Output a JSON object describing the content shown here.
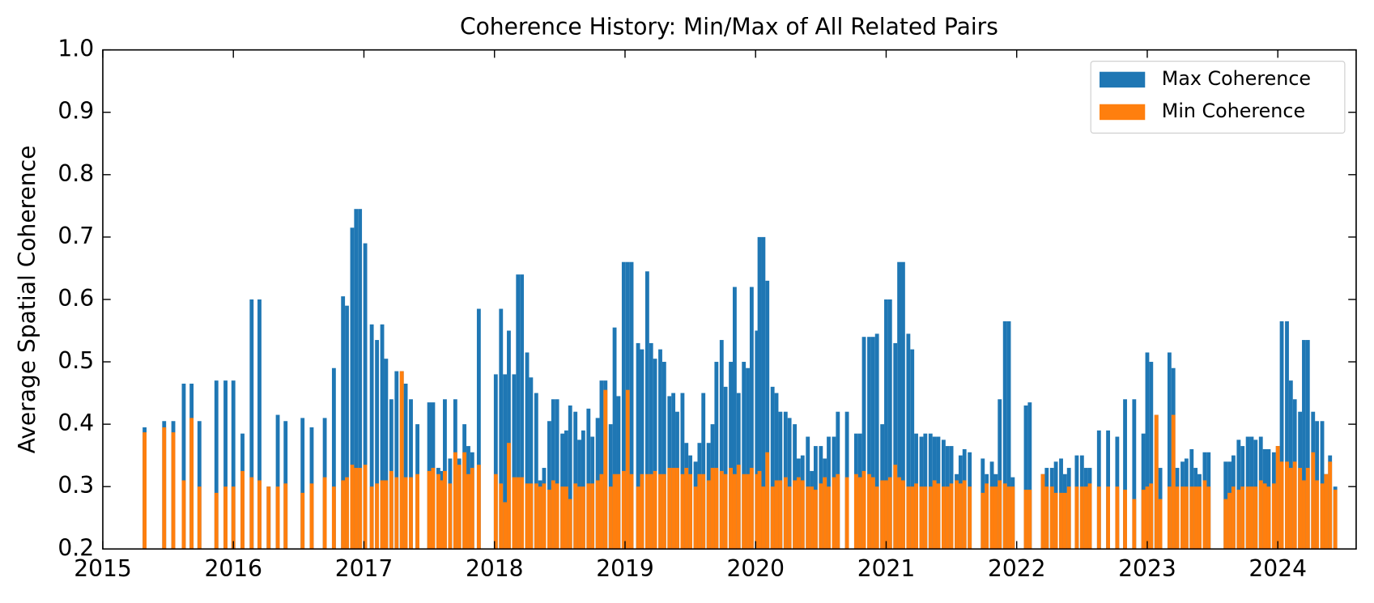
{
  "chart_data": {
    "type": "bar",
    "title": "Coherence History: Min/Max of All Related Pairs",
    "ylabel": "Average Spatial Coherence",
    "legend": "upper right",
    "xlim": [
      2015,
      2024.6
    ],
    "xticks": [
      2015,
      2016,
      2017,
      2018,
      2019,
      2020,
      2021,
      2022,
      2023,
      2024
    ],
    "ylim": [
      0.2,
      1.0
    ],
    "yticks": [
      0.2,
      0.3,
      0.4,
      0.5,
      0.6,
      0.7,
      0.8,
      0.9,
      {
        "value": 1,
        "label": "1.0"
      }
    ],
    "x": [
      2015.32,
      2015.47,
      2015.54,
      2015.62,
      2015.68,
      2015.74,
      2015.87,
      2015.94,
      2016.0,
      2016.07,
      2016.14,
      2016.2,
      2016.27,
      2016.34,
      2016.4,
      2016.53,
      2016.6,
      2016.7,
      2016.77,
      2016.84,
      2016.87,
      2016.91,
      2016.94,
      2016.97,
      2017.01,
      2017.06,
      2017.1,
      2017.14,
      2017.17,
      2017.21,
      2017.25,
      2017.29,
      2017.32,
      2017.36,
      2017.41,
      2017.5,
      2017.53,
      2017.57,
      2017.59,
      2017.62,
      2017.66,
      2017.7,
      2017.73,
      2017.77,
      2017.8,
      2017.83,
      2017.88,
      2018.01,
      2018.05,
      2018.08,
      2018.11,
      2018.15,
      2018.18,
      2018.21,
      2018.25,
      2018.28,
      2018.32,
      2018.35,
      2018.38,
      2018.42,
      2018.45,
      2018.48,
      2018.52,
      2018.55,
      2018.58,
      2018.62,
      2018.65,
      2018.68,
      2018.72,
      2018.75,
      2018.79,
      2018.82,
      2018.85,
      2018.89,
      2018.92,
      2018.95,
      2018.99,
      2019.02,
      2019.05,
      2019.1,
      2019.13,
      2019.17,
      2019.2,
      2019.23,
      2019.27,
      2019.3,
      2019.34,
      2019.37,
      2019.4,
      2019.44,
      2019.47,
      2019.5,
      2019.54,
      2019.57,
      2019.6,
      2019.64,
      2019.67,
      2019.7,
      2019.74,
      2019.77,
      2019.81,
      2019.84,
      2019.87,
      2019.91,
      2019.94,
      2019.97,
      2020.01,
      2020.03,
      2020.06,
      2020.09,
      2020.13,
      2020.16,
      2020.19,
      2020.23,
      2020.26,
      2020.3,
      2020.33,
      2020.36,
      2020.4,
      2020.43,
      2020.46,
      2020.5,
      2020.53,
      2020.56,
      2020.6,
      2020.63,
      2020.7,
      2020.77,
      2020.8,
      2020.83,
      2020.87,
      2020.9,
      2020.93,
      2020.97,
      2021.0,
      2021.03,
      2021.07,
      2021.1,
      2021.13,
      2021.17,
      2021.2,
      2021.23,
      2021.27,
      2021.3,
      2021.34,
      2021.37,
      2021.4,
      2021.44,
      2021.47,
      2021.5,
      2021.54,
      2021.57,
      2021.6,
      2021.64,
      2021.74,
      2021.77,
      2021.81,
      2021.84,
      2021.87,
      2021.91,
      2021.94,
      2021.97,
      2022.07,
      2022.1,
      2022.2,
      2022.23,
      2022.27,
      2022.3,
      2022.34,
      2022.37,
      2022.4,
      2022.46,
      2022.5,
      2022.53,
      2022.56,
      2022.63,
      2022.7,
      2022.77,
      2022.83,
      2022.9,
      2022.97,
      2023.0,
      2023.03,
      2023.07,
      2023.1,
      2023.17,
      2023.2,
      2023.23,
      2023.27,
      2023.3,
      2023.34,
      2023.37,
      2023.4,
      2023.44,
      2023.47,
      2023.6,
      2023.63,
      2023.66,
      2023.7,
      2023.73,
      2023.77,
      2023.8,
      2023.83,
      2023.87,
      2023.9,
      2023.93,
      2023.97,
      2024.0,
      2024.03,
      2024.07,
      2024.1,
      2024.13,
      2024.17,
      2024.2,
      2024.23,
      2024.27,
      2024.3,
      2024.34,
      2024.37,
      2024.4,
      2024.44
    ],
    "series": [
      {
        "name": "Max Coherence",
        "color": "#1f77b4",
        "values": [
          0.395,
          0.405,
          0.405,
          0.465,
          0.465,
          0.405,
          0.47,
          0.47,
          0.47,
          0.385,
          0.6,
          0.6,
          0.3,
          0.415,
          0.405,
          0.41,
          0.395,
          0.41,
          0.49,
          0.605,
          0.59,
          0.715,
          0.745,
          0.745,
          0.69,
          0.56,
          0.535,
          0.56,
          0.505,
          0.44,
          0.485,
          0.485,
          0.465,
          0.44,
          0.4,
          0.435,
          0.435,
          0.33,
          0.325,
          0.44,
          0.345,
          0.44,
          0.345,
          0.4,
          0.365,
          0.355,
          0.585,
          0.48,
          0.585,
          0.48,
          0.55,
          0.48,
          0.64,
          0.64,
          0.515,
          0.475,
          0.45,
          0.31,
          0.33,
          0.405,
          0.44,
          0.44,
          0.385,
          0.39,
          0.43,
          0.42,
          0.375,
          0.39,
          0.425,
          0.38,
          0.41,
          0.47,
          0.47,
          0.4,
          0.555,
          0.445,
          0.66,
          0.66,
          0.66,
          0.53,
          0.52,
          0.645,
          0.53,
          0.505,
          0.52,
          0.5,
          0.445,
          0.45,
          0.42,
          0.45,
          0.37,
          0.35,
          0.34,
          0.37,
          0.45,
          0.37,
          0.4,
          0.5,
          0.535,
          0.46,
          0.5,
          0.62,
          0.45,
          0.5,
          0.49,
          0.62,
          0.55,
          0.7,
          0.7,
          0.63,
          0.46,
          0.45,
          0.42,
          0.42,
          0.41,
          0.4,
          0.345,
          0.35,
          0.38,
          0.325,
          0.365,
          0.365,
          0.345,
          0.38,
          0.38,
          0.42,
          0.42,
          0.385,
          0.385,
          0.54,
          0.54,
          0.54,
          0.545,
          0.4,
          0.6,
          0.6,
          0.53,
          0.66,
          0.66,
          0.545,
          0.52,
          0.385,
          0.38,
          0.385,
          0.385,
          0.38,
          0.38,
          0.375,
          0.365,
          0.365,
          0.32,
          0.35,
          0.36,
          0.355,
          0.345,
          0.32,
          0.34,
          0.32,
          0.44,
          0.565,
          0.565,
          0.315,
          0.43,
          0.435,
          0.32,
          0.33,
          0.33,
          0.34,
          0.345,
          0.32,
          0.33,
          0.35,
          0.35,
          0.33,
          0.33,
          0.39,
          0.39,
          0.38,
          0.44,
          0.44,
          0.385,
          0.515,
          0.5,
          0.415,
          0.33,
          0.515,
          0.49,
          0.33,
          0.34,
          0.345,
          0.36,
          0.33,
          0.32,
          0.355,
          0.355,
          0.34,
          0.34,
          0.35,
          0.375,
          0.365,
          0.38,
          0.38,
          0.375,
          0.38,
          0.36,
          0.36,
          0.355,
          0.365,
          0.565,
          0.565,
          0.47,
          0.44,
          0.42,
          0.535,
          0.535,
          0.42,
          0.405,
          0.405,
          0.32,
          0.35,
          0.3
        ]
      },
      {
        "name": "Min Coherence",
        "color": "#ff7f0e",
        "values": [
          0.387,
          0.395,
          0.387,
          0.31,
          0.41,
          0.3,
          0.29,
          0.3,
          0.3,
          0.325,
          0.315,
          0.31,
          0.3,
          0.3,
          0.305,
          0.29,
          0.305,
          0.315,
          0.3,
          0.31,
          0.315,
          0.335,
          0.33,
          0.33,
          0.335,
          0.3,
          0.305,
          0.31,
          0.31,
          0.325,
          0.315,
          0.485,
          0.315,
          0.315,
          0.32,
          0.325,
          0.33,
          0.32,
          0.31,
          0.325,
          0.305,
          0.355,
          0.335,
          0.355,
          0.32,
          0.33,
          0.335,
          0.32,
          0.305,
          0.275,
          0.37,
          0.315,
          0.315,
          0.315,
          0.305,
          0.305,
          0.305,
          0.3,
          0.305,
          0.295,
          0.31,
          0.305,
          0.3,
          0.3,
          0.28,
          0.305,
          0.3,
          0.3,
          0.305,
          0.305,
          0.31,
          0.32,
          0.455,
          0.3,
          0.32,
          0.32,
          0.325,
          0.455,
          0.32,
          0.3,
          0.32,
          0.32,
          0.32,
          0.325,
          0.32,
          0.32,
          0.33,
          0.33,
          0.33,
          0.32,
          0.33,
          0.32,
          0.3,
          0.32,
          0.32,
          0.31,
          0.33,
          0.33,
          0.325,
          0.32,
          0.33,
          0.32,
          0.335,
          0.32,
          0.32,
          0.33,
          0.32,
          0.325,
          0.3,
          0.355,
          0.3,
          0.31,
          0.31,
          0.315,
          0.3,
          0.31,
          0.315,
          0.31,
          0.3,
          0.3,
          0.295,
          0.305,
          0.315,
          0.3,
          0.315,
          0.32,
          0.315,
          0.32,
          0.315,
          0.325,
          0.32,
          0.315,
          0.3,
          0.31,
          0.31,
          0.315,
          0.335,
          0.315,
          0.31,
          0.3,
          0.3,
          0.305,
          0.3,
          0.3,
          0.3,
          0.31,
          0.305,
          0.3,
          0.3,
          0.305,
          0.31,
          0.305,
          0.31,
          0.3,
          0.29,
          0.305,
          0.3,
          0.3,
          0.31,
          0.305,
          0.3,
          0.3,
          0.295,
          0.295,
          0.32,
          0.3,
          0.3,
          0.29,
          0.29,
          0.29,
          0.3,
          0.3,
          0.3,
          0.3,
          0.305,
          0.3,
          0.3,
          0.3,
          0.295,
          0.28,
          0.295,
          0.3,
          0.305,
          0.415,
          0.28,
          0.3,
          0.415,
          0.3,
          0.3,
          0.3,
          0.3,
          0.3,
          0.3,
          0.31,
          0.3,
          0.28,
          0.29,
          0.3,
          0.295,
          0.3,
          0.3,
          0.3,
          0.3,
          0.31,
          0.305,
          0.3,
          0.305,
          0.365,
          0.34,
          0.34,
          0.33,
          0.34,
          0.33,
          0.31,
          0.33,
          0.355,
          0.31,
          0.305,
          0.32,
          0.34,
          0.295
        ]
      }
    ]
  }
}
